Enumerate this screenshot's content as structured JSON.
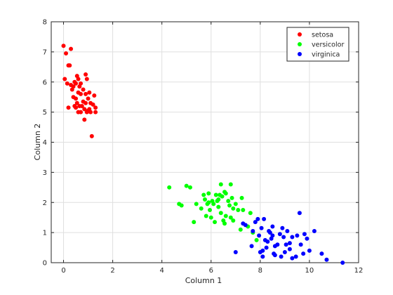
{
  "chart_data": {
    "type": "scatter",
    "xlabel": "Column 1",
    "ylabel": "Column 2",
    "xlim": [
      -0.5,
      12
    ],
    "ylim": [
      0,
      8
    ],
    "xticks": [
      "0",
      "2",
      "4",
      "6",
      "8",
      "10",
      "12"
    ],
    "yticks": [
      "0",
      "1",
      "2",
      "3",
      "4",
      "5",
      "6",
      "7",
      "8"
    ],
    "grid": true,
    "legend_position": "top-right",
    "series": [
      {
        "name": "setosa",
        "color": "#ff0000",
        "points": [
          [
            0.0,
            7.2
          ],
          [
            0.05,
            6.1
          ],
          [
            0.1,
            6.95
          ],
          [
            0.15,
            5.95
          ],
          [
            0.2,
            5.15
          ],
          [
            0.2,
            6.55
          ],
          [
            0.3,
            7.1
          ],
          [
            0.3,
            5.9
          ],
          [
            0.35,
            5.75
          ],
          [
            0.4,
            5.85
          ],
          [
            0.45,
            6.0
          ],
          [
            0.45,
            5.2
          ],
          [
            0.5,
            5.15
          ],
          [
            0.5,
            5.45
          ],
          [
            0.5,
            5.95
          ],
          [
            0.55,
            5.3
          ],
          [
            0.55,
            6.2
          ],
          [
            0.6,
            5.65
          ],
          [
            0.6,
            6.1
          ],
          [
            0.6,
            5.0
          ],
          [
            0.65,
            5.85
          ],
          [
            0.65,
            5.2
          ],
          [
            0.7,
            5.6
          ],
          [
            0.7,
            5.0
          ],
          [
            0.7,
            5.95
          ],
          [
            0.75,
            5.2
          ],
          [
            0.8,
            5.75
          ],
          [
            0.8,
            5.35
          ],
          [
            0.85,
            4.75
          ],
          [
            0.85,
            5.1
          ],
          [
            0.9,
            5.6
          ],
          [
            0.9,
            5.3
          ],
          [
            0.9,
            6.25
          ],
          [
            0.95,
            6.1
          ],
          [
            0.95,
            5.0
          ],
          [
            1.0,
            5.05
          ],
          [
            1.0,
            5.45
          ],
          [
            1.05,
            5.1
          ],
          [
            1.05,
            5.65
          ],
          [
            1.1,
            5.3
          ],
          [
            1.1,
            5.0
          ],
          [
            1.15,
            4.2
          ],
          [
            1.2,
            5.25
          ],
          [
            1.25,
            5.55
          ],
          [
            1.3,
            5.15
          ],
          [
            1.3,
            5.0
          ],
          [
            0.25,
            6.55
          ],
          [
            0.4,
            5.5
          ]
        ]
      },
      {
        "name": "versicolor",
        "color": "#00ff00",
        "points": [
          [
            4.3,
            2.5
          ],
          [
            4.7,
            1.95
          ],
          [
            4.8,
            1.9
          ],
          [
            5.0,
            2.55
          ],
          [
            5.15,
            2.5
          ],
          [
            5.3,
            1.35
          ],
          [
            5.4,
            1.95
          ],
          [
            5.6,
            1.8
          ],
          [
            5.7,
            2.25
          ],
          [
            5.75,
            2.1
          ],
          [
            5.8,
            1.55
          ],
          [
            5.85,
            1.95
          ],
          [
            5.9,
            2.0
          ],
          [
            5.9,
            2.3
          ],
          [
            5.95,
            1.75
          ],
          [
            6.0,
            1.5
          ],
          [
            6.05,
            2.05
          ],
          [
            6.1,
            1.95
          ],
          [
            6.15,
            1.35
          ],
          [
            6.2,
            2.25
          ],
          [
            6.3,
            1.85
          ],
          [
            6.3,
            2.1
          ],
          [
            6.35,
            2.25
          ],
          [
            6.4,
            2.6
          ],
          [
            6.4,
            1.65
          ],
          [
            6.45,
            2.2
          ],
          [
            6.5,
            1.4
          ],
          [
            6.55,
            1.3
          ],
          [
            6.55,
            2.35
          ],
          [
            6.6,
            1.55
          ],
          [
            6.7,
            2.05
          ],
          [
            6.75,
            1.9
          ],
          [
            6.8,
            1.5
          ],
          [
            6.8,
            2.6
          ],
          [
            6.85,
            2.15
          ],
          [
            6.9,
            1.4
          ],
          [
            6.9,
            1.8
          ],
          [
            7.0,
            1.95
          ],
          [
            7.1,
            1.75
          ],
          [
            7.2,
            1.1
          ],
          [
            7.25,
            2.15
          ],
          [
            7.3,
            1.75
          ],
          [
            7.5,
            1.2
          ],
          [
            7.6,
            1.65
          ],
          [
            7.7,
            1.0
          ],
          [
            7.85,
            0.75
          ],
          [
            6.25,
            2.05
          ],
          [
            6.6,
            2.3
          ]
        ]
      },
      {
        "name": "virginica",
        "color": "#0000ff",
        "points": [
          [
            7.0,
            0.35
          ],
          [
            7.3,
            1.3
          ],
          [
            7.4,
            1.25
          ],
          [
            7.65,
            0.55
          ],
          [
            7.7,
            1.05
          ],
          [
            7.8,
            1.35
          ],
          [
            7.9,
            1.45
          ],
          [
            7.95,
            0.9
          ],
          [
            8.0,
            0.35
          ],
          [
            8.05,
            1.15
          ],
          [
            8.1,
            0.4
          ],
          [
            8.1,
            0.2
          ],
          [
            8.15,
            1.45
          ],
          [
            8.2,
            0.75
          ],
          [
            8.25,
            0.5
          ],
          [
            8.3,
            0.7
          ],
          [
            8.35,
            1.05
          ],
          [
            8.4,
            1.0
          ],
          [
            8.45,
            0.8
          ],
          [
            8.5,
            0.9
          ],
          [
            8.5,
            1.2
          ],
          [
            8.55,
            0.3
          ],
          [
            8.6,
            0.25
          ],
          [
            8.6,
            0.55
          ],
          [
            8.7,
            0.6
          ],
          [
            8.8,
            0.95
          ],
          [
            8.85,
            0.2
          ],
          [
            8.9,
            1.15
          ],
          [
            8.95,
            0.85
          ],
          [
            9.0,
            0.35
          ],
          [
            9.1,
            1.05
          ],
          [
            9.2,
            0.65
          ],
          [
            9.2,
            0.45
          ],
          [
            9.3,
            0.85
          ],
          [
            9.45,
            0.2
          ],
          [
            9.5,
            0.9
          ],
          [
            9.6,
            1.65
          ],
          [
            9.65,
            0.6
          ],
          [
            9.75,
            0.3
          ],
          [
            9.8,
            0.95
          ],
          [
            9.9,
            0.8
          ],
          [
            10.0,
            0.4
          ],
          [
            10.2,
            1.05
          ],
          [
            10.5,
            0.3
          ],
          [
            10.7,
            0.1
          ],
          [
            11.35,
            0.0
          ],
          [
            9.05,
            0.6
          ],
          [
            9.3,
            0.15
          ]
        ]
      }
    ]
  }
}
